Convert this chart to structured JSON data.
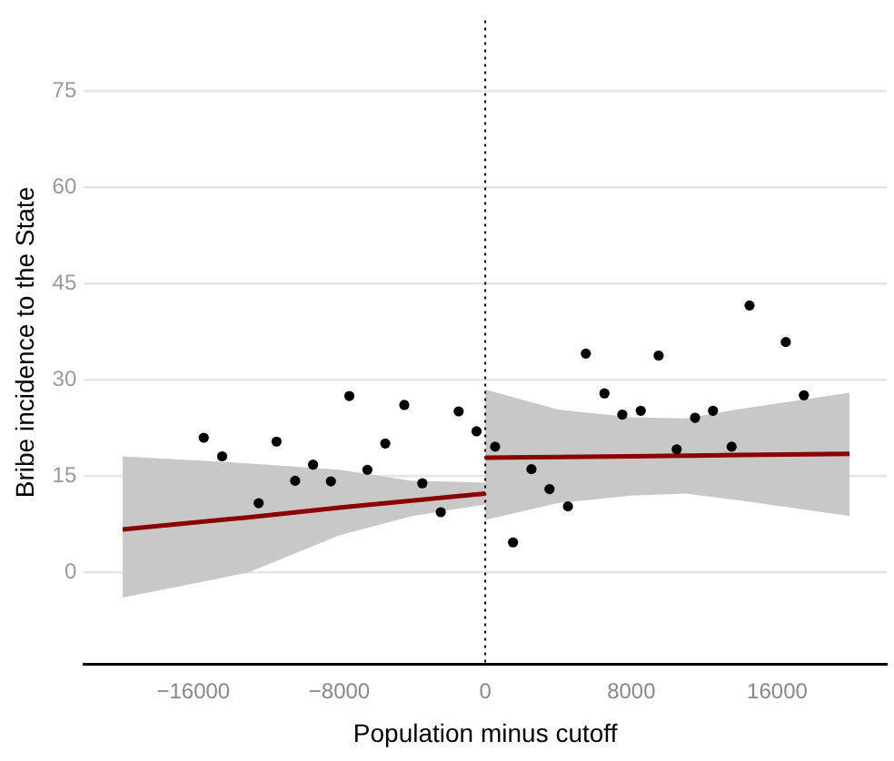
{
  "chart_data": {
    "type": "scatter",
    "xlabel": "Population minus cutoff",
    "ylabel": "Bribe incidence to the State",
    "xlim": [
      -22000,
      22000
    ],
    "ylim": [
      -14.3,
      86
    ],
    "xticks": [
      -16000,
      -8000,
      0,
      8000,
      16000
    ],
    "yticks": [
      0,
      15,
      30,
      45,
      60,
      75
    ],
    "grid": "y",
    "legend": false,
    "ref_lines": [
      {
        "axis": "x",
        "value": 0,
        "color": "#000000",
        "line_style": "dotted"
      }
    ],
    "series": [
      {
        "color": "#000000",
        "marker": "circle",
        "x": [
          -15430,
          -14420,
          -12420,
          -11440,
          -10420,
          -9440,
          -8460,
          -7450,
          -6460,
          -5480,
          -4440,
          -3450,
          -2440,
          -1460,
          -480,
          540,
          1520,
          2530,
          3520,
          4530,
          5510,
          6530,
          7510,
          8520,
          9500,
          10490,
          11500,
          12480,
          13500,
          14480,
          16470,
          17460
        ],
        "values": [
          21.0,
          18.1,
          10.8,
          20.4,
          14.3,
          16.8,
          14.2,
          27.5,
          16.0,
          20.1,
          26.1,
          13.9,
          9.4,
          25.1,
          22.0,
          19.6,
          4.7,
          16.1,
          13.0,
          10.3,
          34.1,
          27.9,
          24.6,
          25.2,
          33.8,
          19.2,
          24.1,
          25.2,
          19.6,
          41.6,
          35.9,
          27.6
        ]
      },
      {
        "type": "line",
        "marker": "none",
        "color": "#8b0000",
        "x": [
          -19870,
          -13000,
          -8000,
          -4000,
          0
        ],
        "values": [
          6.7,
          8.6,
          10.1,
          11.2,
          12.3
        ],
        "lower": [
          -3.9,
          0,
          5.8,
          8.8,
          10.6
        ],
        "upper": [
          18.1,
          17.0,
          16.0,
          14.3,
          14.0
        ]
      },
      {
        "type": "line",
        "marker": "none",
        "color": "#8b0000",
        "x": [
          0,
          4000,
          8000,
          11000,
          14000,
          19960
        ],
        "values": [
          17.9,
          18.0,
          18.1,
          18.2,
          18.3,
          18.5
        ],
        "lower": [
          8.2,
          10.8,
          12.0,
          12.3,
          11.2,
          8.8
        ],
        "upper": [
          28.5,
          25.4,
          24.2,
          24.0,
          25.5,
          28.0
        ]
      }
    ]
  }
}
